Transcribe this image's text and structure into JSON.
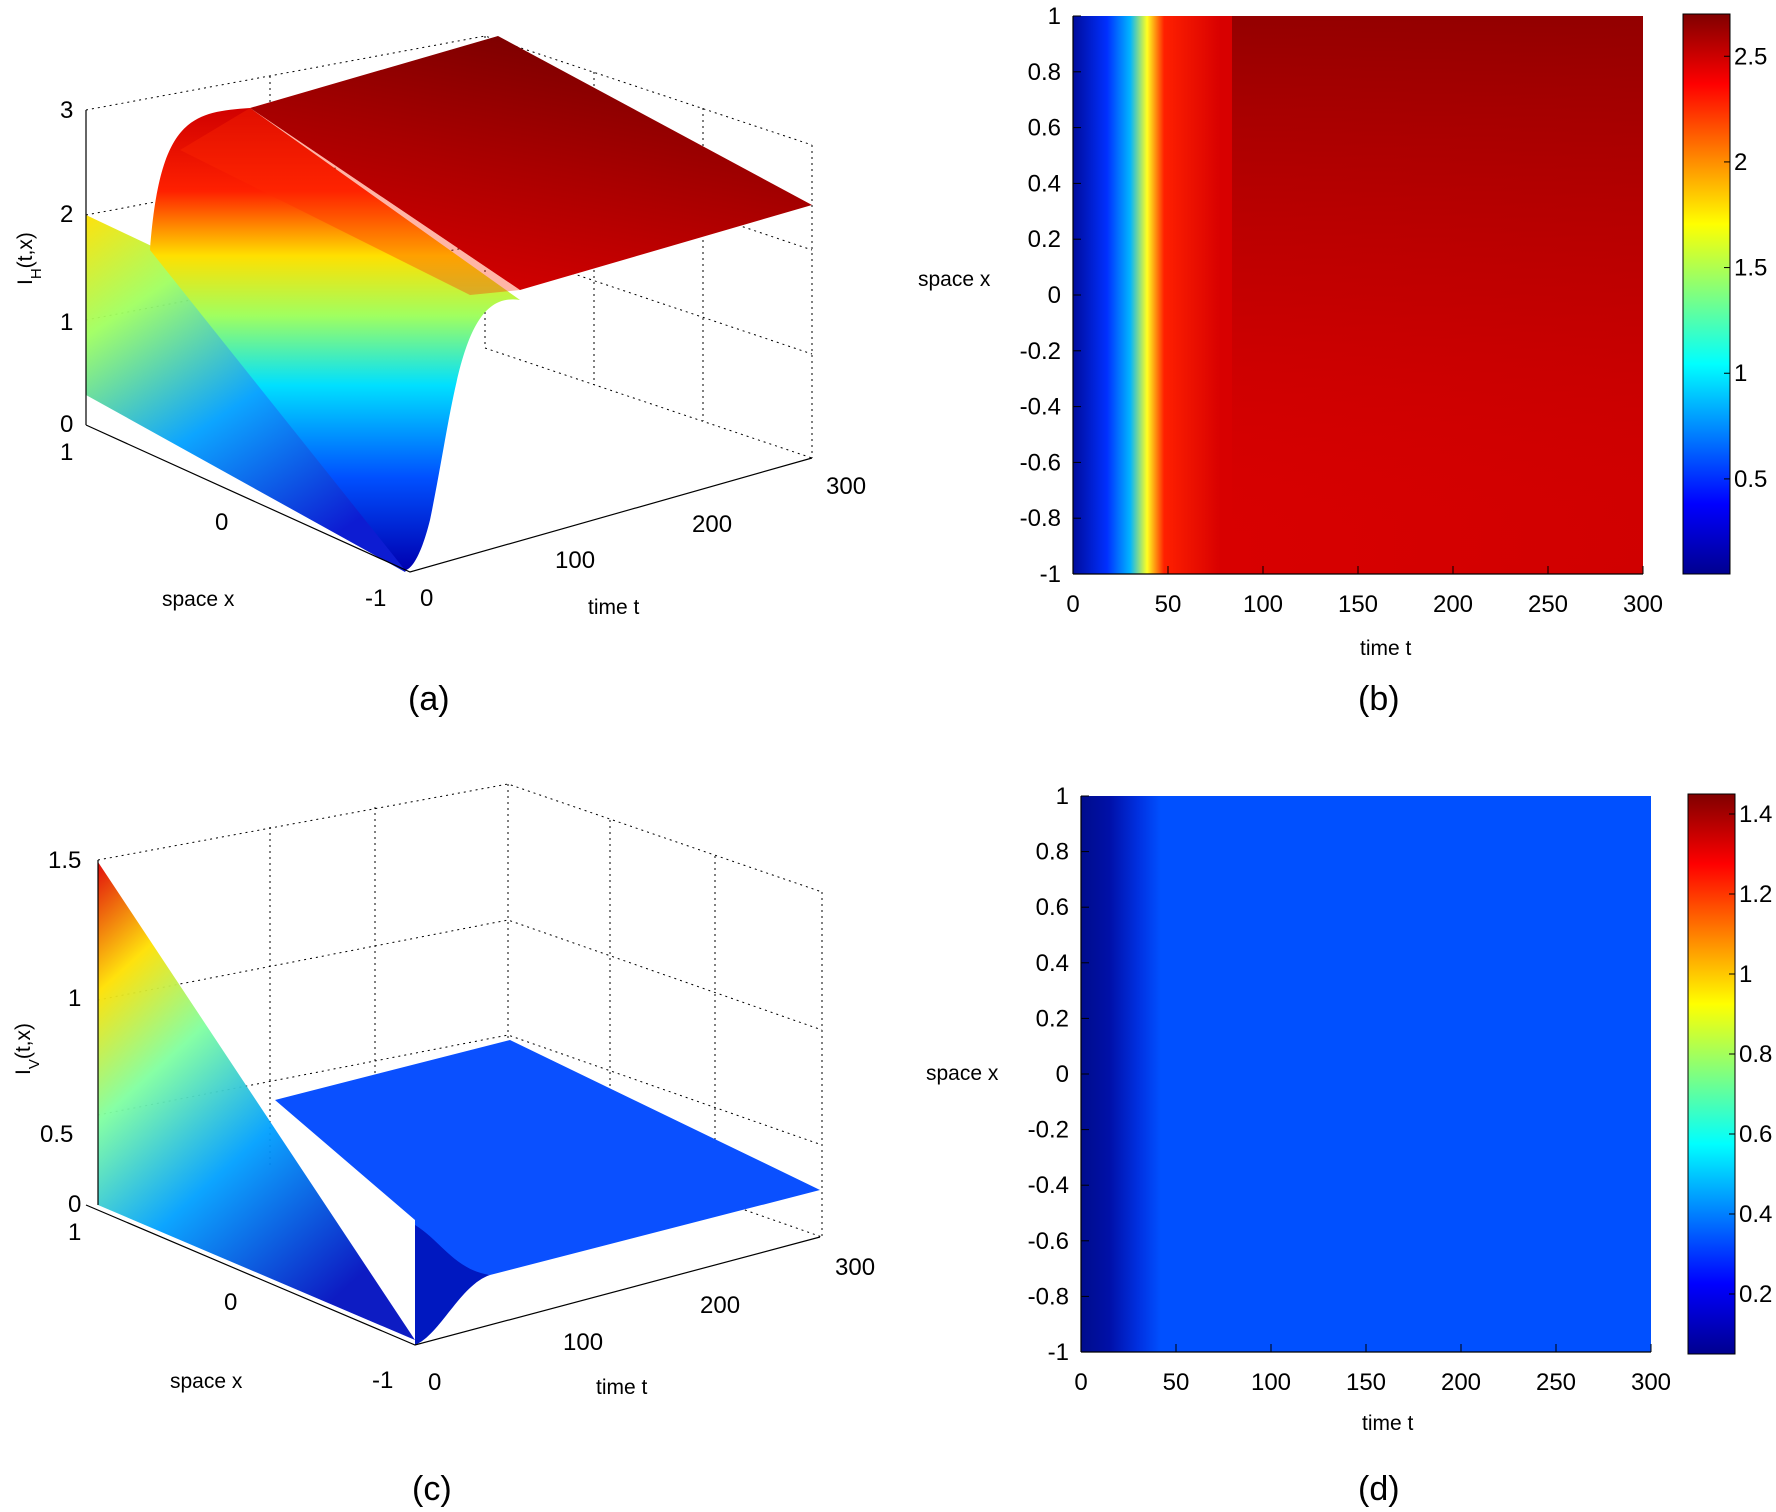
{
  "panels": {
    "a": {
      "caption": "(a)"
    },
    "b": {
      "caption": "(b)"
    },
    "c": {
      "caption": "(c)"
    },
    "d": {
      "caption": "(d)"
    }
  },
  "chart_data": [
    {
      "id": "a",
      "type": "surface",
      "title": "",
      "xlabel": "space x",
      "ylabel": "time t",
      "zlabel": "I_H(t,x)",
      "x_ticks": [
        "-1",
        "0",
        "1"
      ],
      "t_ticks": [
        "0",
        "100",
        "200",
        "300"
      ],
      "z_ticks": [
        "0",
        "1",
        "2",
        "3"
      ],
      "xlim": [
        -1,
        1
      ],
      "tlim": [
        0,
        300
      ],
      "zlim": [
        0,
        3
      ],
      "grid": true,
      "colormap": "jet",
      "initial_profile": {
        "x": [
          -1,
          0,
          1
        ],
        "z": [
          0.0,
          1.0,
          2.0
        ]
      },
      "steady_state": {
        "x": [
          -1,
          0,
          1
        ],
        "z": [
          2.35,
          2.5,
          2.65
        ]
      },
      "transition_time": 50
    },
    {
      "id": "b",
      "type": "heatmap",
      "title": "",
      "xlabel": "time t",
      "ylabel": "space x",
      "x_ticks": [
        "0",
        "50",
        "100",
        "150",
        "200",
        "250",
        "300"
      ],
      "y_ticks": [
        "-1",
        "-0.8",
        "-0.6",
        "-0.4",
        "-0.2",
        "0",
        "0.2",
        "0.4",
        "0.6",
        "0.8",
        "1"
      ],
      "xlim": [
        0,
        300
      ],
      "ylim": [
        -1,
        1
      ],
      "colorbar_ticks": [
        "0.5",
        "1",
        "1.5",
        "2",
        "2.5"
      ],
      "colorbar_range": [
        0.05,
        2.7
      ],
      "colormap": "jet"
    },
    {
      "id": "c",
      "type": "surface",
      "title": "",
      "xlabel": "space x",
      "ylabel": "time t",
      "zlabel": "I_V(t,x)",
      "x_ticks": [
        "-1",
        "0",
        "1"
      ],
      "t_ticks": [
        "0",
        "100",
        "200",
        "300"
      ],
      "z_ticks": [
        "0",
        "0.5",
        "1",
        "1.5"
      ],
      "xlim": [
        -1,
        1
      ],
      "tlim": [
        0,
        300
      ],
      "zlim": [
        0,
        1.5
      ],
      "grid": true,
      "colormap": "jet",
      "initial_profile": {
        "x": [
          -1,
          0,
          1
        ],
        "z": [
          0.0,
          0.7,
          1.4
        ]
      },
      "steady_state": {
        "x": [
          -1,
          0,
          1
        ],
        "z": [
          0.2,
          0.2,
          0.2
        ]
      },
      "transition_time": 40
    },
    {
      "id": "d",
      "type": "heatmap",
      "title": "",
      "xlabel": "time t",
      "ylabel": "space x",
      "x_ticks": [
        "0",
        "50",
        "100",
        "150",
        "200",
        "250",
        "300"
      ],
      "y_ticks": [
        "-1",
        "-0.8",
        "-0.6",
        "-0.4",
        "-0.2",
        "0",
        "0.2",
        "0.4",
        "0.6",
        "0.8",
        "1"
      ],
      "xlim": [
        0,
        300
      ],
      "ylim": [
        -1,
        1
      ],
      "colorbar_ticks": [
        "0.2",
        "0.4",
        "0.6",
        "0.8",
        "1",
        "1.2",
        "1.4"
      ],
      "colorbar_range": [
        0.05,
        1.45
      ],
      "colormap": "jet"
    }
  ]
}
